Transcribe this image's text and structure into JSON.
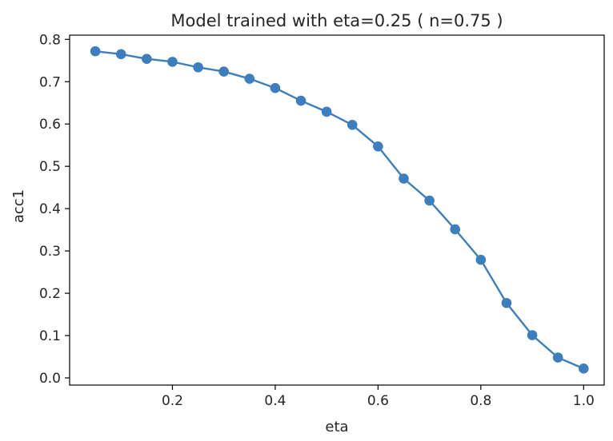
{
  "chart_data": {
    "type": "line",
    "title": "Model trained with eta=0.25 ( n=0.75 )",
    "xlabel": "eta",
    "ylabel": "acc1",
    "xlim": [
      0.0,
      1.04
    ],
    "ylim": [
      -0.017,
      0.81
    ],
    "xticks": [
      0.2,
      0.4,
      0.6,
      0.8,
      1.0
    ],
    "xtick_labels": [
      "0.2",
      "0.4",
      "0.6",
      "0.8",
      "1.0"
    ],
    "yticks": [
      0.0,
      0.1,
      0.2,
      0.3,
      0.4,
      0.5,
      0.6,
      0.7,
      0.8
    ],
    "ytick_labels": [
      "0.0",
      "0.1",
      "0.2",
      "0.3",
      "0.4",
      "0.5",
      "0.6",
      "0.7",
      "0.8"
    ],
    "grid": false,
    "marker": "circle",
    "series": [
      {
        "color": "#3d7ebf",
        "x": [
          0.05,
          0.1,
          0.15,
          0.2,
          0.25,
          0.3,
          0.35,
          0.4,
          0.45,
          0.5,
          0.55,
          0.6,
          0.65,
          0.7,
          0.75,
          0.8,
          0.85,
          0.9,
          0.95,
          1.0
        ],
        "y": [
          0.772,
          0.765,
          0.754,
          0.747,
          0.734,
          0.724,
          0.707,
          0.685,
          0.655,
          0.629,
          0.598,
          0.547,
          0.471,
          0.419,
          0.351,
          0.279,
          0.177,
          0.101,
          0.048,
          0.022
        ]
      }
    ]
  }
}
